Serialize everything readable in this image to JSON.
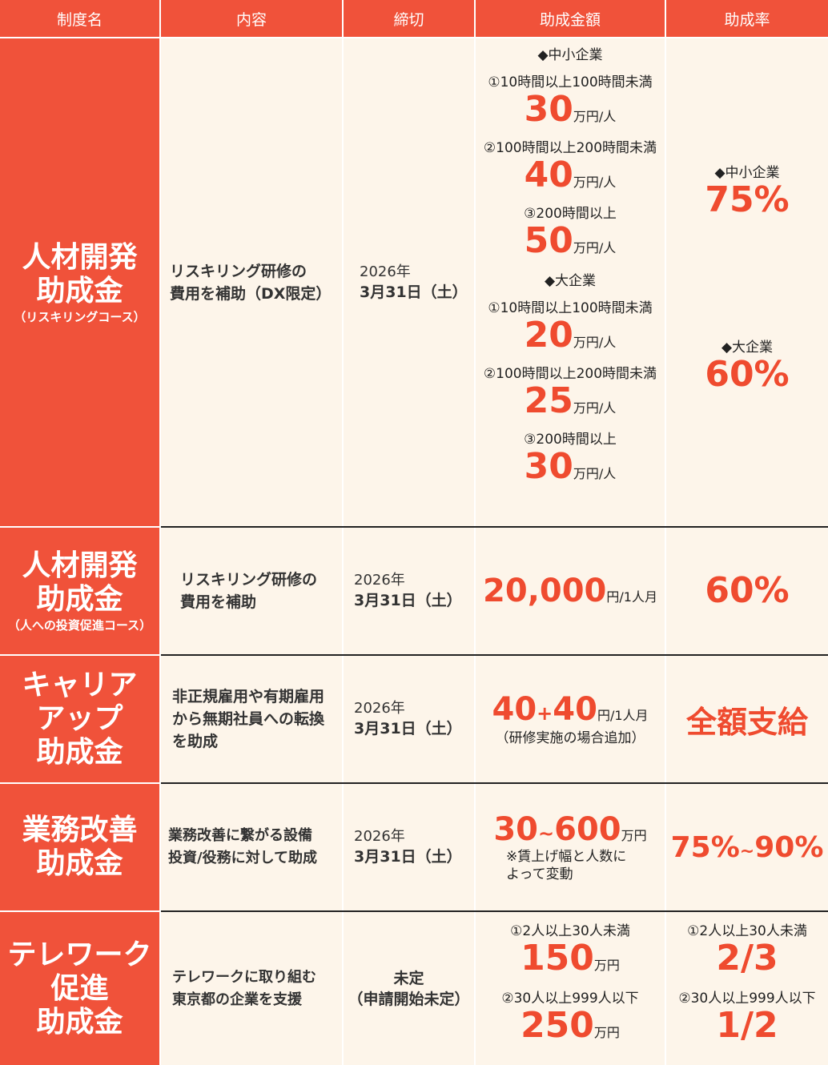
{
  "headers": {
    "name": "制度名",
    "content": "内容",
    "deadline": "締切",
    "amount": "助成金額",
    "rate": "助成率"
  },
  "rows": [
    {
      "name_lines": [
        "人材開発",
        "助成金"
      ],
      "name_sub": "（リスキリングコース）",
      "desc_lines": [
        "リスキリング研修の",
        "費用を補助（DX限定）"
      ],
      "deadline_year": "2026年",
      "deadline_date": "3月31日（土）",
      "amount": {
        "groups": [
          {
            "label": "◆中小企業",
            "items": [
              {
                "band": "①10時間以上100時間未満",
                "value": "30",
                "unit": "万円/人"
              },
              {
                "band": "②100時間以上200時間未満",
                "value": "40",
                "unit": "万円/人"
              },
              {
                "band": "③200時間以上",
                "value": "50",
                "unit": "万円/人"
              }
            ]
          },
          {
            "label": "◆大企業",
            "items": [
              {
                "band": "①10時間以上100時間未満",
                "value": "20",
                "unit": "万円/人"
              },
              {
                "band": "②100時間以上200時間未満",
                "value": "25",
                "unit": "万円/人"
              },
              {
                "band": "③200時間以上",
                "value": "30",
                "unit": "万円/人"
              }
            ]
          }
        ]
      },
      "rate": {
        "sme_label": "◆中小企業",
        "sme_value": "75%",
        "large_label": "◆大企業",
        "large_value": "60%"
      }
    },
    {
      "name_lines": [
        "人材開発",
        "助成金"
      ],
      "name_sub": "（人への投資促進コース）",
      "desc_lines": [
        "リスキリング研修の",
        "費用を補助"
      ],
      "deadline_year": "2026年",
      "deadline_date": "3月31日（土）",
      "amount": {
        "value": "20,000",
        "unit": "円/1人月"
      },
      "rate": {
        "value": "60%"
      }
    },
    {
      "name_lines": [
        "キャリア",
        "アップ",
        "助成金"
      ],
      "desc_lines": [
        "非正規雇用や有期雇用",
        "から無期社員への転換",
        "を助成"
      ],
      "deadline_year": "2026年",
      "deadline_date": "3月31日（土）",
      "amount": {
        "value_a": "40",
        "plus": "+",
        "value_b": "40",
        "unit": "円/1人月",
        "note": "（研修実施の場合追加）"
      },
      "rate": {
        "value": "全額支給"
      }
    },
    {
      "name_lines": [
        "業務改善",
        "助成金"
      ],
      "desc_lines": [
        "業務改善に繋がる設備",
        "投資/役務に対して助成"
      ],
      "deadline_year": "2026年",
      "deadline_date": "3月31日（土）",
      "amount": {
        "value_a": "30",
        "tilde": "~",
        "value_b": "600",
        "unit": "万円",
        "note_lines": [
          "※賃上げ幅と人数に",
          "よって変動"
        ]
      },
      "rate": {
        "value_a": "75%",
        "tilde": "~",
        "value_b": "90%"
      }
    },
    {
      "name_lines": [
        "テレワーク",
        "促進",
        "助成金"
      ],
      "desc_lines": [
        "テレワークに取り組む",
        "東京都の企業を支援"
      ],
      "deadline_lines": [
        "未定",
        "（申請開始未定）"
      ],
      "amount": {
        "items": [
          {
            "band": "①2人以上30人未満",
            "value": "150",
            "unit": "万円"
          },
          {
            "band": "②30人以上999人以下",
            "value": "250",
            "unit": "万円"
          }
        ]
      },
      "rate": {
        "items": [
          {
            "band": "①2人以上30人未満",
            "value": "2/3"
          },
          {
            "band": "②30人以上999人以下",
            "value": "1/2"
          }
        ]
      }
    }
  ]
}
